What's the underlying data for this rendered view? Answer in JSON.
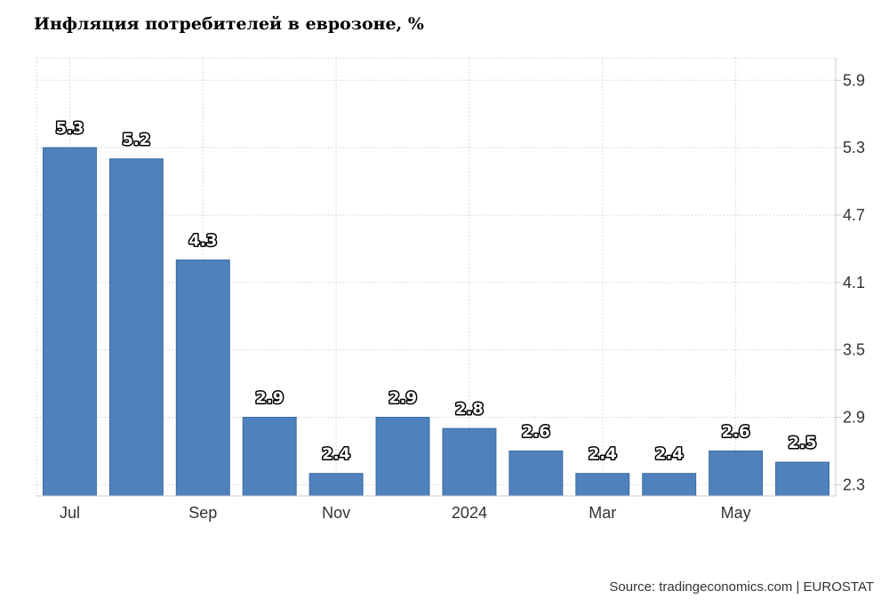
{
  "title": "Инфляция потребителей в еврозоне, %",
  "source": "Source: tradingeconomics.com | EUROSTAT",
  "colors": {
    "bar": "#4f81bd",
    "grid": "#d9d9d9",
    "axis": "#cccccc"
  },
  "chart_data": {
    "type": "bar",
    "title": "Инфляция потребителей в еврозоне, %",
    "categories": [
      "Jul",
      "",
      "Sep",
      "",
      "Nov",
      "",
      "2024",
      "",
      "Mar",
      "",
      "May",
      ""
    ],
    "values": [
      5.3,
      5.2,
      4.3,
      2.9,
      2.4,
      2.9,
      2.8,
      2.6,
      2.4,
      2.4,
      2.6,
      2.5
    ],
    "data_labels": [
      "5.3",
      "5.2",
      "4.3",
      "2.9",
      "2.4",
      "2.9",
      "2.8",
      "2.6",
      "2.4",
      "2.4",
      "2.6",
      "2.5"
    ],
    "yticks": [
      "5.9",
      "5.3",
      "4.7",
      "4.1",
      "3.5",
      "2.9",
      "2.3"
    ],
    "ylim": [
      2.2,
      6.1
    ],
    "y_axis_side": "right",
    "grid": true,
    "xlabel": "",
    "ylabel": ""
  }
}
